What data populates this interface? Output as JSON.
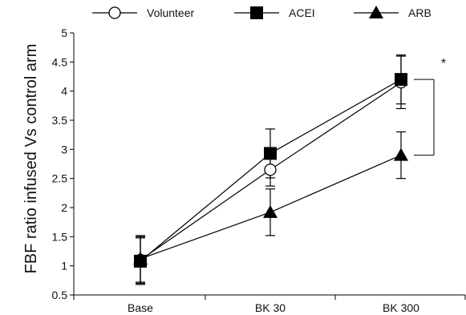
{
  "chart_data": {
    "type": "line",
    "title": "",
    "xlabel": "",
    "ylabel": "FBF ratio infused Vs control arm",
    "categories": [
      "Base",
      "BK 30",
      "BK 300"
    ],
    "ylim": [
      0.5,
      5
    ],
    "yticks": [
      "0.5",
      "1",
      "1.5",
      "2",
      "2.5",
      "3",
      "3.5",
      "4",
      "4.5",
      "5"
    ],
    "grid": false,
    "legend_position": "top",
    "series": [
      {
        "name": "Volunteer",
        "marker": "open-circle",
        "values": [
          1.1,
          2.65,
          4.15
        ],
        "error": [
          0.4,
          0.28,
          0.45
        ]
      },
      {
        "name": "ACEI",
        "marker": "filled-square",
        "values": [
          1.08,
          2.93,
          4.2
        ],
        "error": [
          0.4,
          0.42,
          0.42
        ]
      },
      {
        "name": "ARB",
        "marker": "filled-triangle",
        "values": [
          1.12,
          1.92,
          2.9
        ],
        "error": [
          0.4,
          0.4,
          0.4
        ]
      }
    ],
    "annotations": [
      {
        "text": "*",
        "between": [
          "ACEI",
          "ARB"
        ],
        "at": "BK 300"
      }
    ]
  },
  "colors": {
    "ink": "#000000",
    "background": "#ffffff"
  }
}
